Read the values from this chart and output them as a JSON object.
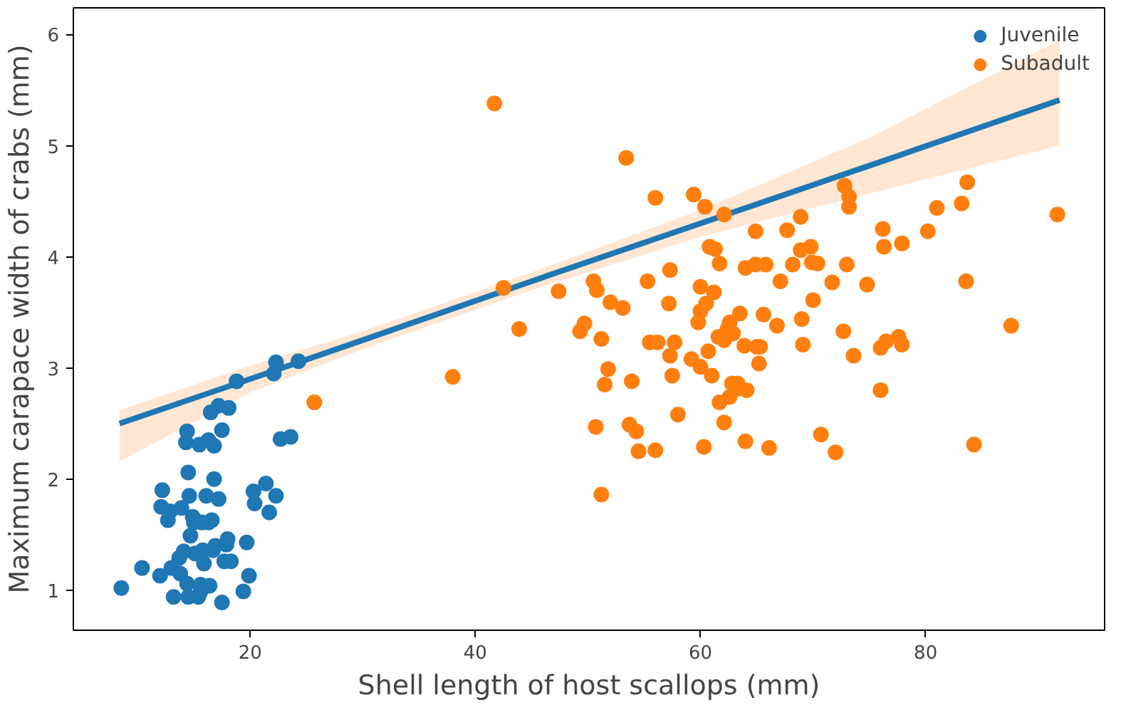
{
  "chart_data": {
    "type": "scatter",
    "xlabel": "Shell length of host scallops (mm)",
    "ylabel": "Maximum carapace width of crabs (mm)",
    "xlim": [
      4.3,
      95.9
    ],
    "ylim": [
      0.64,
      6.24
    ],
    "xticks": [
      20,
      40,
      60,
      80
    ],
    "yticks": [
      1,
      2,
      3,
      4,
      5,
      6
    ],
    "grid": false,
    "legend": "top right",
    "marker": "circle",
    "series": [
      {
        "name": "Juvenile",
        "color": "#1f77b4",
        "x": [
          8.56,
          10.4,
          12.0,
          12.2,
          12.1,
          12.7,
          12.9,
          13.2,
          13.0,
          13.7,
          13.9,
          14.1,
          14.3,
          14.4,
          14.4,
          14.5,
          14.5,
          14.6,
          14.7,
          14.9,
          15.0,
          15.1,
          15.4,
          15.5,
          15.6,
          15.7,
          15.6,
          15.8,
          15.9,
          16.1,
          16.3,
          16.3,
          16.4,
          16.5,
          16.6,
          16.7,
          16.8,
          16.8,
          16.9,
          17.2,
          17.2,
          17.5,
          17.5,
          17.7,
          17.9,
          18.0,
          18.1,
          18.3,
          18.8,
          19.4,
          19.7,
          19.9,
          20.3,
          20.4,
          21.4,
          21.7,
          22.1,
          22.3,
          22.3,
          22.7,
          23.6,
          24.3,
          13.8
        ],
        "values": [
          1.02,
          1.2,
          1.13,
          1.9,
          1.75,
          1.63,
          1.71,
          0.94,
          1.2,
          1.29,
          1.74,
          1.35,
          2.33,
          2.43,
          1.06,
          0.94,
          2.06,
          1.85,
          1.49,
          1.66,
          1.61,
          1.33,
          0.94,
          2.31,
          0.99,
          1.61,
          1.05,
          1.36,
          1.24,
          1.85,
          1.61,
          2.35,
          1.04,
          2.6,
          1.63,
          1.36,
          2.3,
          2.0,
          1.4,
          2.66,
          1.82,
          0.89,
          2.44,
          1.26,
          1.41,
          1.46,
          2.64,
          1.26,
          2.88,
          0.99,
          1.43,
          1.13,
          1.89,
          1.78,
          1.96,
          1.7,
          2.95,
          3.05,
          1.85,
          2.36,
          2.38,
          3.06,
          1.15
        ]
      },
      {
        "name": "Subadult",
        "color": "#ff7f0e",
        "x": [
          25.7,
          38.0,
          41.7,
          42.5,
          43.9,
          47.4,
          49.3,
          49.7,
          50.5,
          50.8,
          50.7,
          51.2,
          51.2,
          51.5,
          51.8,
          52.0,
          53.4,
          53.1,
          53.7,
          53.9,
          54.3,
          54.5,
          55.3,
          55.5,
          56.0,
          56.0,
          56.2,
          57.2,
          57.3,
          57.3,
          57.5,
          57.7,
          58.0,
          59.2,
          59.4,
          59.8,
          60.0,
          60.0,
          60.0,
          60.3,
          60.4,
          60.5,
          60.7,
          60.8,
          61.0,
          61.2,
          61.3,
          61.6,
          61.7,
          61.7,
          62.1,
          62.1,
          62.1,
          62.4,
          62.6,
          62.6,
          62.9,
          62.8,
          63.2,
          63.3,
          63.5,
          63.9,
          64.0,
          64.0,
          64.1,
          64.9,
          64.9,
          65.0,
          65.2,
          65.3,
          65.6,
          65.8,
          66.1,
          66.8,
          67.1,
          67.7,
          68.2,
          68.9,
          68.9,
          69.0,
          69.1,
          69.8,
          69.9,
          70.0,
          70.4,
          70.7,
          71.7,
          72.0,
          72.7,
          72.8,
          73.2,
          73.2,
          73.0,
          73.6,
          74.8,
          76.0,
          76.0,
          76.2,
          76.3,
          76.5,
          77.6,
          77.9,
          77.9,
          80.2,
          81.0,
          83.2,
          83.7,
          83.6,
          84.3,
          87.6,
          91.7
        ],
        "values": [
          2.69,
          2.92,
          5.38,
          3.72,
          3.35,
          3.69,
          3.33,
          3.4,
          3.78,
          3.7,
          2.47,
          3.26,
          1.86,
          2.85,
          2.99,
          3.59,
          4.89,
          3.54,
          2.49,
          2.88,
          2.43,
          2.25,
          3.78,
          3.23,
          4.53,
          2.26,
          3.23,
          3.58,
          3.88,
          3.11,
          2.93,
          3.23,
          2.58,
          3.08,
          4.56,
          3.41,
          3.51,
          3.01,
          3.73,
          2.29,
          4.45,
          3.58,
          3.15,
          4.09,
          2.93,
          3.68,
          4.07,
          3.28,
          3.94,
          2.69,
          4.38,
          3.25,
          2.51,
          3.35,
          3.41,
          2.74,
          3.31,
          2.86,
          2.81,
          2.86,
          3.49,
          3.2,
          3.9,
          2.34,
          2.8,
          4.23,
          3.93,
          3.19,
          3.04,
          3.19,
          3.48,
          3.93,
          2.28,
          3.38,
          3.78,
          4.24,
          3.93,
          4.36,
          4.06,
          3.44,
          3.21,
          4.09,
          3.95,
          3.61,
          3.94,
          2.4,
          3.77,
          2.24,
          3.33,
          4.64,
          4.54,
          4.45,
          3.93,
          3.11,
          3.75,
          2.8,
          3.18,
          4.25,
          4.09,
          3.24,
          3.28,
          3.21,
          4.12,
          4.23,
          4.44,
          4.48,
          4.67,
          3.78,
          2.31,
          3.38,
          4.38
        ]
      },
      {
        "type": "line",
        "marker": "none",
        "color": "#1f77b4",
        "x": [
          8.4,
          20,
          30,
          45,
          60,
          75,
          91.9
        ],
        "values": [
          2.5,
          2.9,
          3.25,
          3.78,
          4.3,
          4.82,
          5.41
        ],
        "lower": [
          2.16,
          2.78,
          3.17,
          3.7,
          4.18,
          4.57,
          5.0
        ],
        "upper": [
          2.62,
          3.02,
          3.33,
          3.86,
          4.42,
          5.07,
          5.95
        ]
      }
    ]
  }
}
